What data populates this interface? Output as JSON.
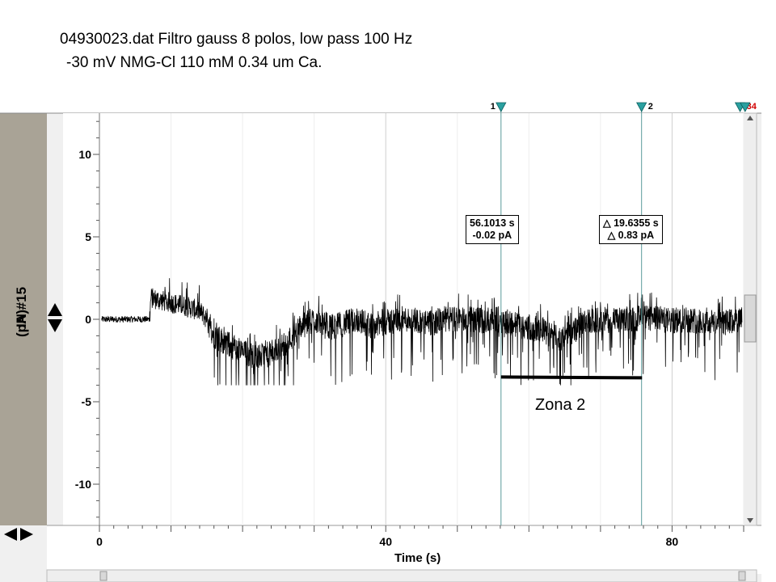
{
  "title": {
    "line1": "04930023.dat Filtro gauss 8 polos, low pass 100 Hz",
    "line2": "-30 mV NMG-Cl 110 mM 0.34 um Ca."
  },
  "cursor_readout_1": {
    "time": "56.1013 s",
    "value": "-0.02 pA"
  },
  "cursor_readout_2": {
    "time": "△ 19.6355 s",
    "value": "△ 0.83 pA"
  },
  "cursors": [
    {
      "label": "1",
      "time": 56.1013
    },
    {
      "label": "2",
      "time": 75.7368
    },
    {
      "label": "3",
      "time": 89.5
    },
    {
      "label": "4",
      "time": 90.2
    }
  ],
  "annotation": {
    "label": "Zona 2",
    "from": 56.1,
    "to": 75.8,
    "level": -3.5
  },
  "colors": {
    "trace": "#000000",
    "cursor": "#5b9a9a",
    "marker": "#2aa0a0",
    "gutter": "#a9a396",
    "plot_bg": "#ffffff",
    "panel": "#f0f0f0"
  },
  "icons": {
    "scale_up": "triangle-up-icon",
    "scale_down": "triangle-down-icon",
    "scroll_left": "triangle-left-icon",
    "scroll_right": "triangle-right-icon"
  },
  "chart_data": {
    "type": "line",
    "title": "",
    "xlabel": "Time (s)",
    "ylabel": "IN #15 (pA)",
    "xlim": [
      0,
      90
    ],
    "ylim": [
      -12.5,
      12.5
    ],
    "xticks": [
      0,
      40,
      80
    ],
    "yticks": [
      10,
      5,
      0,
      -5,
      -10
    ],
    "grid": true,
    "series": [
      {
        "x": [
          0,
          2,
          4,
          6,
          7,
          7.2,
          8,
          10,
          12,
          14,
          15,
          16,
          18,
          20,
          22,
          24,
          26,
          28,
          30,
          32,
          34,
          36,
          38,
          40,
          42,
          44,
          46,
          48,
          50,
          52,
          54,
          56,
          58,
          60,
          62,
          64,
          66,
          68,
          70,
          72,
          74,
          76,
          78,
          80,
          82,
          84,
          86,
          88,
          90
        ],
        "y": [
          0,
          0,
          0,
          0,
          0,
          1.3,
          1.2,
          1,
          0.8,
          0.5,
          0,
          -1,
          -1.5,
          -2,
          -2.3,
          -2.1,
          -1.5,
          -0.5,
          0,
          -0.5,
          -0.3,
          0,
          -0.4,
          -0.2,
          0,
          0,
          -0.3,
          0,
          0,
          0,
          -0.1,
          0,
          -0.3,
          -0.5,
          -0.7,
          -1.2,
          -0.8,
          -0.2,
          0,
          -0.1,
          0,
          0.1,
          0,
          -0.1,
          0,
          -0.1,
          -0.2,
          -0.2,
          0
        ]
      }
    ]
  }
}
